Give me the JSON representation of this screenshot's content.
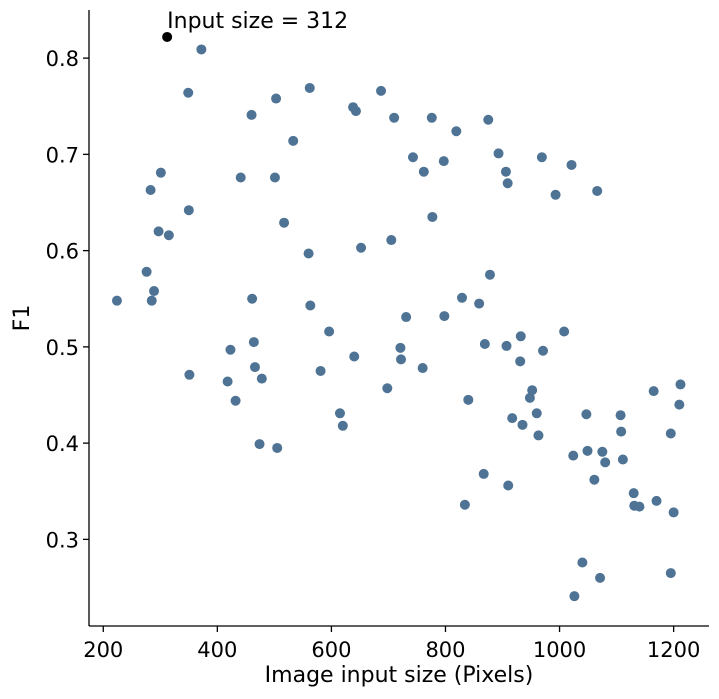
{
  "chart_data": {
    "type": "scatter",
    "xlabel": "Image input size (Pixels)",
    "ylabel": "F1",
    "xlim": [
      175,
      1262
    ],
    "ylim": [
      0.21,
      0.85
    ],
    "xticks": [
      200,
      400,
      600,
      800,
      1000,
      1200
    ],
    "yticks": [
      0.3,
      0.4,
      0.5,
      0.6,
      0.7,
      0.8
    ],
    "xtick_labels": [
      "200",
      "400",
      "600",
      "800",
      "1000",
      "1200"
    ],
    "ytick_labels": [
      "0.3",
      "0.4",
      "0.5",
      "0.6",
      "0.7",
      "0.8"
    ],
    "grid": false,
    "point_color": "#4e7394",
    "highlight_color": "#000000",
    "highlight": {
      "x": 312,
      "y": 0.822,
      "label": "Input size = 312"
    },
    "points": [
      [
        224,
        0.548
      ],
      [
        276,
        0.578
      ],
      [
        283,
        0.663
      ],
      [
        285,
        0.548
      ],
      [
        289,
        0.558
      ],
      [
        297,
        0.62
      ],
      [
        301,
        0.681
      ],
      [
        315,
        0.616
      ],
      [
        349,
        0.764
      ],
      [
        350,
        0.642
      ],
      [
        351,
        0.471
      ],
      [
        372,
        0.809
      ],
      [
        418,
        0.464
      ],
      [
        423,
        0.497
      ],
      [
        432,
        0.444
      ],
      [
        441,
        0.676
      ],
      [
        460,
        0.741
      ],
      [
        461,
        0.55
      ],
      [
        464,
        0.505
      ],
      [
        466,
        0.479
      ],
      [
        474,
        0.399
      ],
      [
        478,
        0.467
      ],
      [
        501,
        0.676
      ],
      [
        503,
        0.758
      ],
      [
        505,
        0.395
      ],
      [
        517,
        0.629
      ],
      [
        533,
        0.714
      ],
      [
        560,
        0.597
      ],
      [
        562,
        0.769
      ],
      [
        563,
        0.543
      ],
      [
        581,
        0.475
      ],
      [
        596,
        0.516
      ],
      [
        615,
        0.431
      ],
      [
        620,
        0.418
      ],
      [
        638,
        0.749
      ],
      [
        640,
        0.49
      ],
      [
        643,
        0.745
      ],
      [
        652,
        0.603
      ],
      [
        687,
        0.766
      ],
      [
        698,
        0.457
      ],
      [
        705,
        0.611
      ],
      [
        710,
        0.738
      ],
      [
        721,
        0.499
      ],
      [
        722,
        0.487
      ],
      [
        731,
        0.531
      ],
      [
        743,
        0.697
      ],
      [
        760,
        0.478
      ],
      [
        762,
        0.682
      ],
      [
        776,
        0.738
      ],
      [
        777,
        0.635
      ],
      [
        797,
        0.693
      ],
      [
        798,
        0.532
      ],
      [
        819,
        0.724
      ],
      [
        829,
        0.551
      ],
      [
        834,
        0.336
      ],
      [
        840,
        0.445
      ],
      [
        859,
        0.545
      ],
      [
        867,
        0.368
      ],
      [
        869,
        0.503
      ],
      [
        875,
        0.736
      ],
      [
        878,
        0.575
      ],
      [
        893,
        0.701
      ],
      [
        906,
        0.682
      ],
      [
        907,
        0.501
      ],
      [
        909,
        0.67
      ],
      [
        910,
        0.356
      ],
      [
        917,
        0.426
      ],
      [
        931,
        0.485
      ],
      [
        932,
        0.511
      ],
      [
        935,
        0.419
      ],
      [
        948,
        0.447
      ],
      [
        952,
        0.455
      ],
      [
        960,
        0.431
      ],
      [
        963,
        0.408
      ],
      [
        969,
        0.697
      ],
      [
        971,
        0.496
      ],
      [
        993,
        0.658
      ],
      [
        1008,
        0.516
      ],
      [
        1021,
        0.689
      ],
      [
        1024,
        0.387
      ],
      [
        1026,
        0.241
      ],
      [
        1040,
        0.276
      ],
      [
        1047,
        0.43
      ],
      [
        1049,
        0.392
      ],
      [
        1061,
        0.362
      ],
      [
        1066,
        0.662
      ],
      [
        1071,
        0.26
      ],
      [
        1075,
        0.391
      ],
      [
        1080,
        0.38
      ],
      [
        1107,
        0.429
      ],
      [
        1108,
        0.412
      ],
      [
        1111,
        0.383
      ],
      [
        1130,
        0.348
      ],
      [
        1131,
        0.335
      ],
      [
        1140,
        0.334
      ],
      [
        1165,
        0.454
      ],
      [
        1170,
        0.34
      ],
      [
        1195,
        0.41
      ],
      [
        1195,
        0.265
      ],
      [
        1200,
        0.328
      ],
      [
        1210,
        0.44
      ],
      [
        1212,
        0.461
      ]
    ]
  }
}
